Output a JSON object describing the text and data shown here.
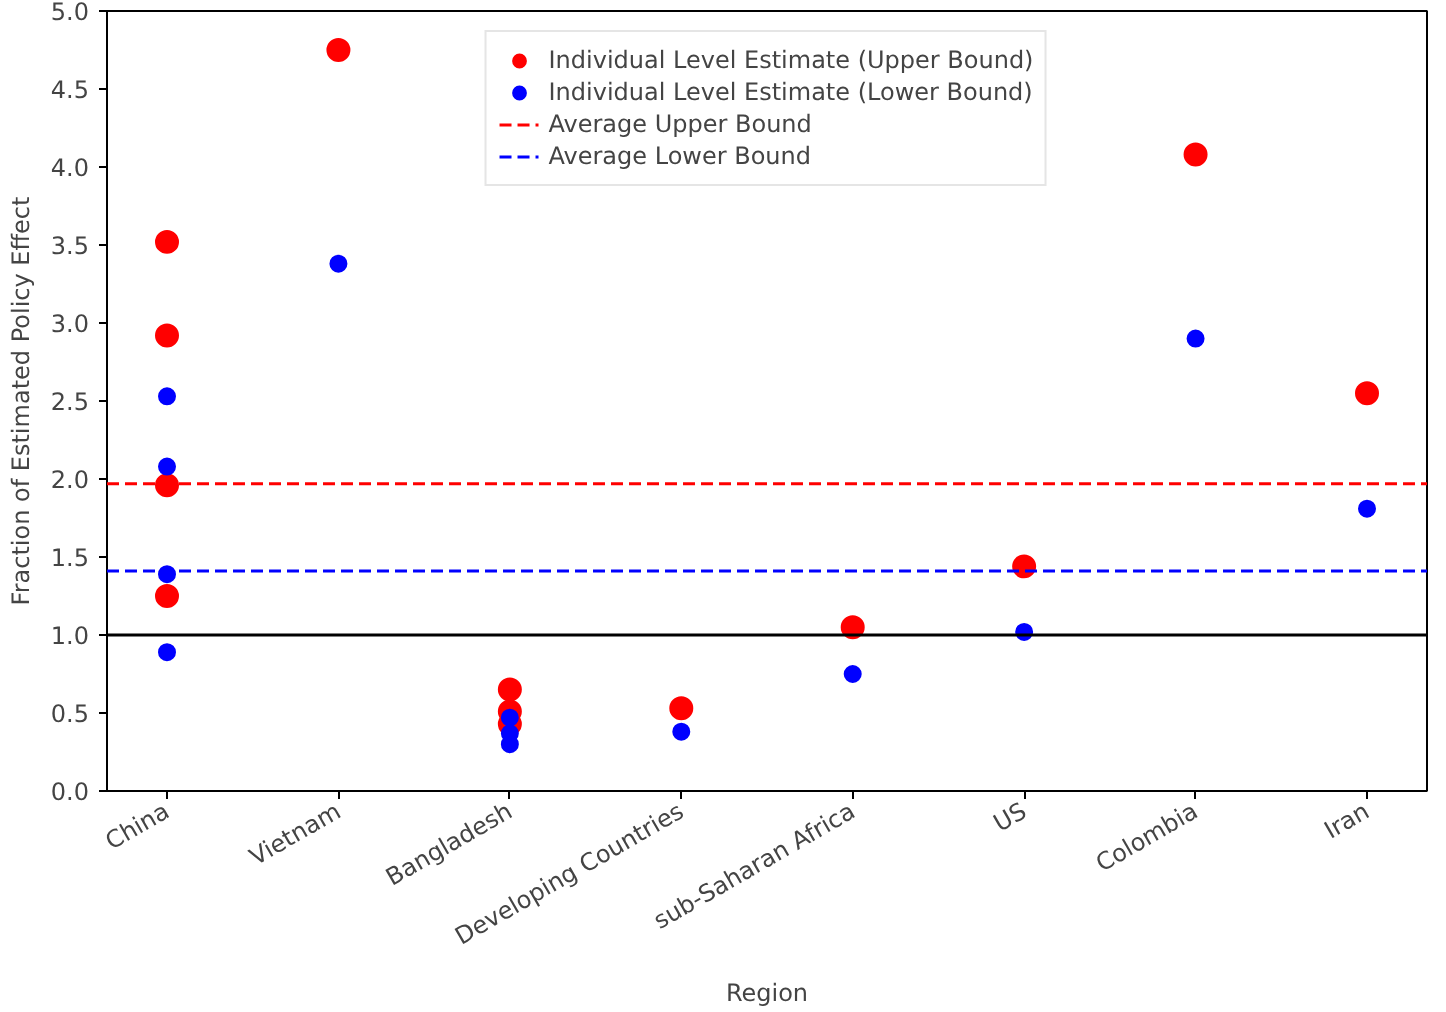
{
  "chart_data": {
    "type": "scatter",
    "xlabel": "Region",
    "ylabel": "Fraction of Estimated Policy Effect",
    "categories": [
      "China",
      "Vietnam",
      "Bangladesh",
      "Developing Countries",
      "sub-Saharan Africa",
      "US",
      "Colombia",
      "Iran"
    ],
    "series": [
      {
        "name": "Individual Level Estimate (Upper Bound)",
        "color": "#ff0000",
        "x": [
          "China",
          "China",
          "China",
          "China",
          "Vietnam",
          "Bangladesh",
          "Bangladesh",
          "Bangladesh",
          "Developing Countries",
          "sub-Saharan Africa",
          "US",
          "Colombia",
          "Iran"
        ],
        "values": [
          3.52,
          2.92,
          1.96,
          1.25,
          4.75,
          0.65,
          0.51,
          0.43,
          0.53,
          1.05,
          1.44,
          4.08,
          2.55
        ]
      },
      {
        "name": "Individual Level Estimate (Lower Bound)",
        "color": "#0000ff",
        "x": [
          "China",
          "China",
          "China",
          "China",
          "Vietnam",
          "Bangladesh",
          "Bangladesh",
          "Bangladesh",
          "Developing Countries",
          "sub-Saharan Africa",
          "US",
          "Colombia",
          "Iran"
        ],
        "values": [
          2.53,
          2.08,
          1.39,
          0.89,
          3.38,
          0.47,
          0.37,
          0.3,
          0.38,
          0.75,
          1.02,
          2.9,
          1.81
        ]
      }
    ],
    "ref_lines": [
      {
        "axis": "y",
        "value": 1.97,
        "label": "Average Upper Bound",
        "color": "#ff0000",
        "line_style": "dashed"
      },
      {
        "axis": "y",
        "value": 1.41,
        "label": "Average Lower Bound",
        "color": "#0000ff",
        "line_style": "dashed"
      },
      {
        "axis": "y",
        "value": 1.0,
        "label": null,
        "color": "#000000",
        "line_style": "solid"
      }
    ],
    "ylim": [
      0,
      5
    ],
    "yticks": [
      {
        "value": 0,
        "label": "0.0"
      },
      {
        "value": 0.5,
        "label": "0.5"
      },
      {
        "value": 1,
        "label": "1.0"
      },
      {
        "value": 1.5,
        "label": "1.5"
      },
      {
        "value": 2,
        "label": "2.0"
      },
      {
        "value": 2.5,
        "label": "2.5"
      },
      {
        "value": 3,
        "label": "3.0"
      },
      {
        "value": 3.5,
        "label": "3.5"
      },
      {
        "value": 4,
        "label": "4.0"
      },
      {
        "value": 4.5,
        "label": "4.5"
      },
      {
        "value": 5,
        "label": "5.0"
      }
    ],
    "marker": "circle",
    "legend": "top",
    "grid": false
  }
}
